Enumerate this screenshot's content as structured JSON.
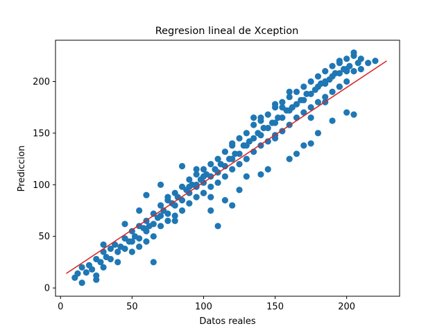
{
  "chart_data": {
    "type": "scatter",
    "title": "Regresion lineal de Xception",
    "xlabel": "Datos reales",
    "ylabel": "Prediccion",
    "xlim": [
      -3.5,
      237
    ],
    "ylim": [
      -8,
      240
    ],
    "xticks": [
      0,
      50,
      100,
      150,
      200
    ],
    "yticks": [
      0,
      50,
      100,
      150,
      200
    ],
    "grid": false,
    "colors": {
      "points": "#1f77b4",
      "line": "#d62728",
      "axes": "#000000"
    },
    "series": [
      {
        "kind": "scatter",
        "x": [
          10,
          12,
          15,
          15,
          18,
          20,
          22,
          25,
          25,
          28,
          30,
          30,
          32,
          35,
          35,
          38,
          40,
          40,
          42,
          45,
          45,
          48,
          50,
          50,
          50,
          52,
          55,
          55,
          55,
          58,
          60,
          60,
          60,
          62,
          65,
          65,
          65,
          68,
          70,
          70,
          70,
          72,
          75,
          75,
          75,
          78,
          80,
          80,
          80,
          82,
          85,
          85,
          85,
          88,
          90,
          90,
          90,
          92,
          95,
          95,
          95,
          98,
          100,
          100,
          100,
          102,
          105,
          105,
          105,
          108,
          110,
          110,
          110,
          112,
          115,
          115,
          115,
          118,
          120,
          120,
          120,
          122,
          125,
          125,
          125,
          128,
          130,
          130,
          130,
          132,
          135,
          135,
          135,
          138,
          140,
          140,
          140,
          142,
          145,
          145,
          145,
          148,
          150,
          150,
          150,
          152,
          155,
          155,
          155,
          158,
          160,
          160,
          160,
          162,
          165,
          165,
          165,
          168,
          170,
          170,
          170,
          172,
          175,
          175,
          175,
          178,
          180,
          180,
          180,
          182,
          185,
          185,
          185,
          188,
          190,
          190,
          190,
          192,
          195,
          195,
          195,
          198,
          200,
          200,
          200,
          202,
          205,
          205,
          208,
          210,
          215,
          220,
          60,
          70,
          85,
          95,
          110,
          120,
          135,
          150,
          165,
          175,
          190,
          205,
          45,
          80,
          100,
          125,
          140,
          160,
          180,
          200,
          30,
          55,
          75,
          90,
          115,
          130,
          145,
          170,
          185,
          195,
          205,
          210,
          25,
          65,
          105,
          155,
          200,
          185,
          175,
          195,
          120,
          140,
          150,
          160,
          95,
          100,
          105
        ],
        "y": [
          10,
          14,
          5,
          20,
          15,
          22,
          18,
          28,
          12,
          25,
          35,
          20,
          30,
          38,
          28,
          42,
          35,
          25,
          40,
          48,
          38,
          45,
          55,
          45,
          35,
          50,
          60,
          48,
          40,
          58,
          65,
          55,
          45,
          60,
          72,
          62,
          50,
          68,
          80,
          70,
          60,
          75,
          85,
          72,
          65,
          82,
          92,
          80,
          70,
          88,
          98,
          85,
          75,
          95,
          105,
          92,
          82,
          100,
          110,
          98,
          88,
          105,
          115,
          102,
          92,
          110,
          120,
          108,
          98,
          115,
          125,
          112,
          102,
          120,
          132,
          118,
          108,
          125,
          138,
          125,
          115,
          130,
          145,
          130,
          120,
          138,
          150,
          138,
          125,
          142,
          158,
          145,
          132,
          150,
          162,
          148,
          138,
          155,
          168,
          155,
          142,
          160,
          175,
          160,
          148,
          165,
          180,
          165,
          152,
          172,
          185,
          172,
          158,
          175,
          190,
          178,
          165,
          182,
          195,
          182,
          170,
          188,
          200,
          188,
          175,
          192,
          205,
          195,
          180,
          198,
          210,
          198,
          185,
          202,
          215,
          205,
          190,
          208,
          220,
          208,
          195,
          212,
          222,
          212,
          200,
          215,
          225,
          210,
          218,
          222,
          218,
          220,
          90,
          100,
          118,
          115,
          60,
          80,
          165,
          145,
          130,
          140,
          162,
          168,
          62,
          65,
          92,
          95,
          110,
          125,
          150,
          170,
          42,
          75,
          88,
          98,
          85,
          108,
          115,
          138,
          180,
          195,
          228,
          212,
          8,
          25,
          75,
          175,
          210,
          200,
          165,
          218,
          140,
          165,
          178,
          190,
          100,
          108,
          88
        ]
      },
      {
        "kind": "line",
        "name": "",
        "x": [
          4,
          228
        ],
        "y": [
          14,
          220
        ]
      }
    ]
  }
}
